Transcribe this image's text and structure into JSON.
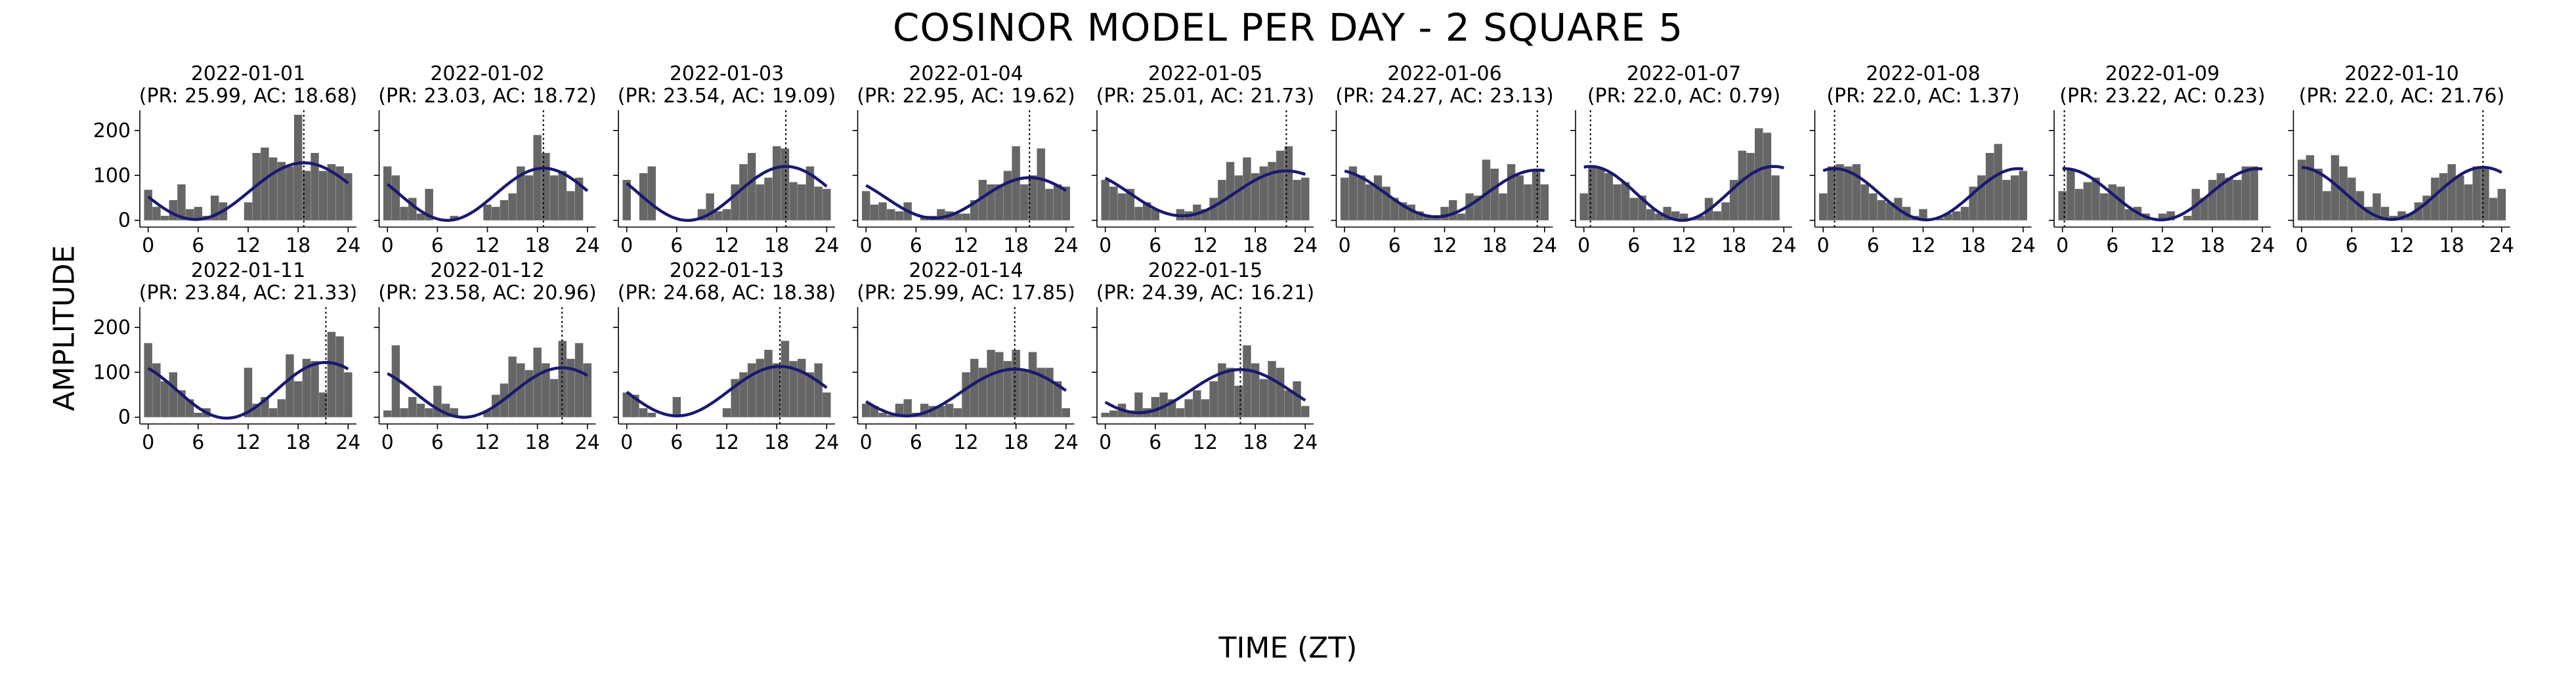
{
  "figure": {
    "title": "COSINOR MODEL PER DAY - 2 SQUARE 5",
    "xlabel": "TIME (ZT)",
    "ylabel": "AMPLITUDE"
  },
  "chart_data": {
    "type": "bar",
    "layout": "small multiples, 2 rows x 10 columns (15 panels used)",
    "x_ticks": [
      0,
      6,
      12,
      18,
      24
    ],
    "y_ticks": [
      0,
      100,
      200
    ],
    "xlim": [
      -1,
      25
    ],
    "ylim": [
      -15,
      245
    ],
    "bar_color": "#666666",
    "fit_color": "#191970",
    "acrophase_line": "dotted vertical line at AC",
    "panels": [
      {
        "date": "2022-01-01",
        "pr": "25.99",
        "ac": "18.68",
        "period": 25.99,
        "acrophase": 18.68,
        "mesor": 65,
        "amplitude": 63,
        "bars": [
          68,
          30,
          10,
          45,
          80,
          25,
          30,
          10,
          55,
          40,
          0,
          0,
          40,
          150,
          162,
          140,
          130,
          120,
          235,
          110,
          150,
          110,
          125,
          120,
          105
        ]
      },
      {
        "date": "2022-01-02",
        "pr": "23.03",
        "ac": "18.72",
        "period": 23.03,
        "acrophase": 18.72,
        "mesor": 58,
        "amplitude": 58,
        "bars": [
          120,
          100,
          30,
          50,
          15,
          70,
          0,
          0,
          10,
          0,
          0,
          0,
          35,
          30,
          45,
          60,
          120,
          100,
          190,
          150,
          100,
          110,
          65,
          95,
          0
        ]
      },
      {
        "date": "2022-01-03",
        "pr": "23.54",
        "ac": "19.09",
        "period": 23.54,
        "acrophase": 19.09,
        "mesor": 60,
        "amplitude": 60,
        "bars": [
          90,
          0,
          105,
          120,
          0,
          0,
          0,
          0,
          0,
          25,
          60,
          20,
          25,
          80,
          125,
          150,
          80,
          95,
          165,
          160,
          85,
          80,
          120,
          75,
          70
        ]
      },
      {
        "date": "2022-01-04",
        "pr": "22.95",
        "ac": "19.62",
        "period": 22.95,
        "acrophase": 19.62,
        "mesor": 50,
        "amplitude": 45,
        "bars": [
          65,
          35,
          40,
          25,
          20,
          40,
          0,
          10,
          10,
          25,
          20,
          15,
          15,
          45,
          90,
          80,
          80,
          110,
          165,
          80,
          100,
          160,
          70,
          80,
          75
        ]
      },
      {
        "date": "2022-01-05",
        "pr": "25.01",
        "ac": "21.73",
        "period": 25.01,
        "acrophase": 21.73,
        "mesor": 60,
        "amplitude": 50,
        "bars": [
          90,
          75,
          60,
          70,
          30,
          40,
          25,
          0,
          0,
          25,
          20,
          35,
          25,
          50,
          90,
          130,
          100,
          140,
          105,
          120,
          130,
          155,
          165,
          90,
          95
        ]
      },
      {
        "date": "2022-01-06",
        "pr": "24.27",
        "ac": "23.13",
        "period": 24.27,
        "acrophase": 23.13,
        "mesor": 60,
        "amplitude": 52,
        "bars": [
          95,
          120,
          100,
          80,
          100,
          75,
          50,
          40,
          35,
          20,
          10,
          5,
          30,
          45,
          15,
          60,
          55,
          135,
          115,
          60,
          125,
          100,
          80,
          110,
          80
        ]
      },
      {
        "date": "2022-01-07",
        "pr": "22.0",
        "ac": "0.79",
        "period": 22.0,
        "acrophase": 0.79,
        "mesor": 60,
        "amplitude": 60,
        "bars": [
          60,
          120,
          115,
          105,
          80,
          85,
          50,
          55,
          25,
          15,
          30,
          20,
          15,
          5,
          10,
          50,
          20,
          40,
          90,
          155,
          150,
          205,
          195,
          100,
          0
        ]
      },
      {
        "date": "2022-01-08",
        "pr": "22.0",
        "ac": "1.37",
        "period": 22.0,
        "acrophase": 1.37,
        "mesor": 58,
        "amplitude": 57,
        "bars": [
          60,
          120,
          125,
          120,
          125,
          80,
          60,
          45,
          40,
          50,
          30,
          10,
          25,
          0,
          5,
          15,
          20,
          30,
          75,
          100,
          150,
          170,
          90,
          100,
          110
        ]
      },
      {
        "date": "2022-01-09",
        "pr": "23.22",
        "ac": "0.23",
        "period": 23.22,
        "acrophase": 0.23,
        "mesor": 58,
        "amplitude": 57,
        "bars": [
          65,
          115,
          70,
          85,
          95,
          60,
          80,
          75,
          25,
          30,
          15,
          0,
          15,
          20,
          0,
          10,
          70,
          50,
          90,
          105,
          95,
          90,
          120,
          120,
          0
        ]
      },
      {
        "date": "2022-01-10",
        "pr": "22.0",
        "ac": "21.76",
        "period": 22.0,
        "acrophase": 21.76,
        "mesor": 60,
        "amplitude": 58,
        "bars": [
          135,
          145,
          115,
          65,
          145,
          120,
          95,
          65,
          30,
          60,
          30,
          10,
          20,
          15,
          40,
          55,
          95,
          105,
          125,
          100,
          80,
          120,
          120,
          50,
          70
        ]
      },
      {
        "date": "2022-01-11",
        "pr": "23.84",
        "ac": "21.33",
        "period": 23.84,
        "acrophase": 21.33,
        "mesor": 60,
        "amplitude": 62,
        "bars": [
          165,
          120,
          80,
          100,
          60,
          40,
          10,
          20,
          0,
          0,
          0,
          0,
          110,
          30,
          45,
          20,
          40,
          140,
          80,
          130,
          125,
          55,
          190,
          180,
          100
        ]
      },
      {
        "date": "2022-01-12",
        "pr": "23.58",
        "ac": "20.96",
        "period": 23.58,
        "acrophase": 20.96,
        "mesor": 55,
        "amplitude": 55,
        "bars": [
          15,
          160,
          20,
          45,
          30,
          20,
          70,
          30,
          20,
          0,
          0,
          0,
          15,
          50,
          75,
          135,
          120,
          105,
          155,
          120,
          85,
          170,
          130,
          165,
          120
        ]
      },
      {
        "date": "2022-01-13",
        "pr": "24.68",
        "ac": "18.38",
        "period": 24.68,
        "acrophase": 18.38,
        "mesor": 58,
        "amplitude": 55,
        "bars": [
          55,
          50,
          20,
          10,
          0,
          0,
          45,
          0,
          0,
          0,
          0,
          0,
          20,
          85,
          100,
          120,
          130,
          150,
          120,
          170,
          125,
          130,
          100,
          120,
          55
        ]
      },
      {
        "date": "2022-01-14",
        "pr": "25.99",
        "ac": "17.85",
        "period": 25.99,
        "acrophase": 17.85,
        "mesor": 55,
        "amplitude": 52,
        "bars": [
          30,
          25,
          10,
          5,
          30,
          40,
          10,
          30,
          25,
          25,
          30,
          20,
          100,
          130,
          110,
          150,
          145,
          125,
          150,
          105,
          145,
          110,
          110,
          80,
          20
        ]
      },
      {
        "date": "2022-01-15",
        "pr": "24.39",
        "ac": "16.21",
        "period": 24.39,
        "acrophase": 16.21,
        "mesor": 58,
        "amplitude": 48,
        "bars": [
          10,
          15,
          30,
          15,
          55,
          20,
          45,
          55,
          40,
          20,
          40,
          60,
          40,
          80,
          120,
          110,
          70,
          160,
          120,
          85,
          125,
          110,
          60,
          80,
          25
        ]
      }
    ]
  }
}
